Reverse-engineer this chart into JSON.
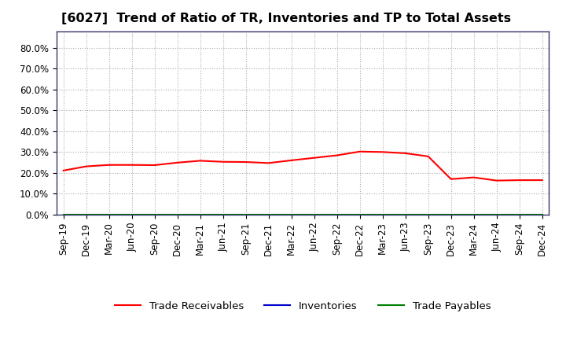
{
  "title": "[6027]  Trend of Ratio of TR, Inventories and TP to Total Assets",
  "background_color": "#ffffff",
  "plot_background_color": "#ffffff",
  "grid_color": "#aaaaaa",
  "ylim": [
    0.0,
    0.88
  ],
  "x_labels": [
    "Sep-19",
    "Dec-19",
    "Mar-20",
    "Jun-20",
    "Sep-20",
    "Dec-20",
    "Mar-21",
    "Jun-21",
    "Sep-21",
    "Dec-21",
    "Mar-22",
    "Jun-22",
    "Sep-22",
    "Dec-22",
    "Mar-23",
    "Jun-23",
    "Sep-23",
    "Dec-23",
    "Mar-24",
    "Jun-24",
    "Sep-24",
    "Dec-24"
  ],
  "trade_receivables": [
    0.211,
    0.231,
    0.238,
    0.238,
    0.237,
    0.249,
    0.258,
    0.253,
    0.252,
    0.247,
    0.26,
    0.272,
    0.284,
    0.302,
    0.3,
    0.294,
    0.279,
    0.17,
    0.178,
    0.163,
    0.165,
    0.165
  ],
  "inventories": [
    0.001,
    0.001,
    0.001,
    0.001,
    0.001,
    0.001,
    0.001,
    0.001,
    0.001,
    0.001,
    0.001,
    0.001,
    0.001,
    0.001,
    0.001,
    0.001,
    0.001,
    0.001,
    0.001,
    0.001,
    0.001,
    0.001
  ],
  "trade_payables": [
    0.0003,
    0.0003,
    0.0003,
    0.0003,
    0.0003,
    0.0003,
    0.0003,
    0.0003,
    0.0003,
    0.0003,
    0.0003,
    0.0003,
    0.0003,
    0.0003,
    0.0003,
    0.0003,
    0.0003,
    0.0003,
    0.0003,
    0.0003,
    0.0003,
    0.0003
  ],
  "tr_color": "#ff0000",
  "inv_color": "#0000cc",
  "tp_color": "#008000",
  "legend_labels": [
    "Trade Receivables",
    "Inventories",
    "Trade Payables"
  ],
  "title_fontsize": 11.5,
  "tick_fontsize": 8.5,
  "legend_fontsize": 9.5,
  "spine_color": "#333366"
}
